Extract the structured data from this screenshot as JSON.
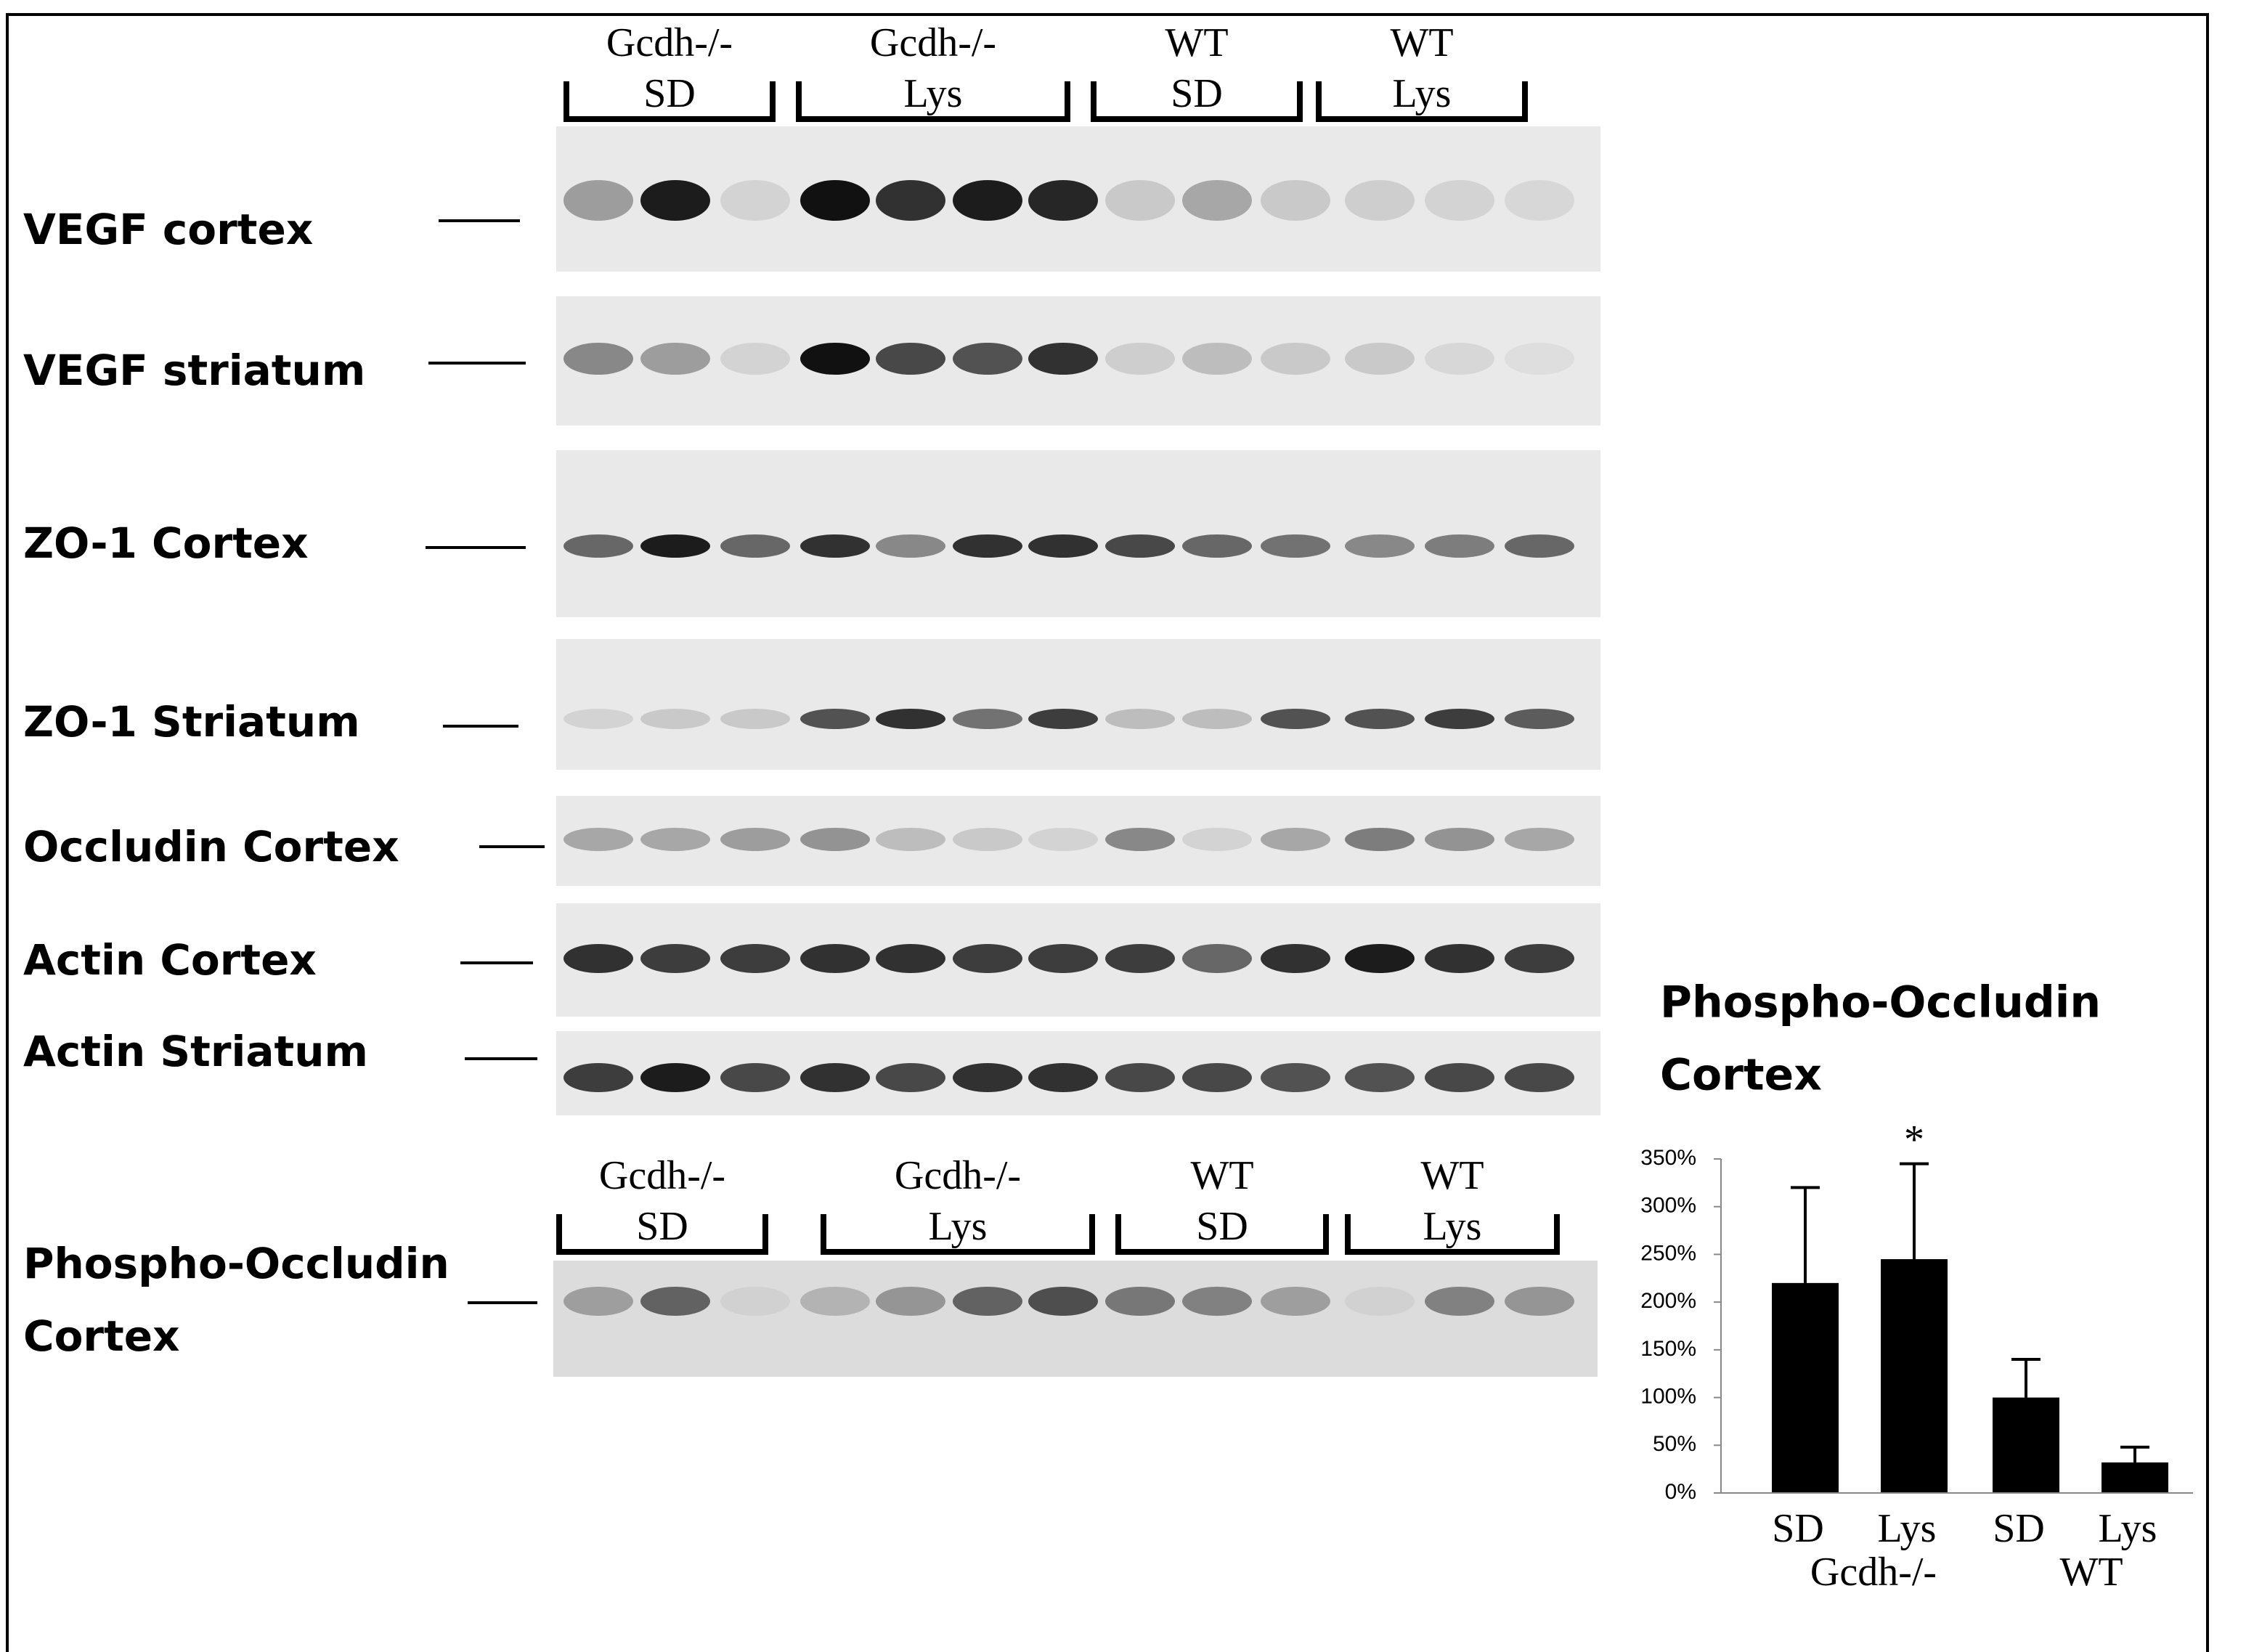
{
  "blots": {
    "top_groups": [
      [
        "Gcdh-/-",
        "SD"
      ],
      [
        "Gcdh-/-",
        "Lys"
      ],
      [
        "WT",
        "SD"
      ],
      [
        "WT",
        "Lys"
      ]
    ],
    "rows": [
      "VEGF cortex",
      "VEGF striatum",
      "ZO-1 Cortex",
      "ZO-1 Striatum",
      "Occludin Cortex",
      "Actin Cortex",
      "Actin Striatum"
    ],
    "bottom_groups": [
      [
        "Gcdh-/-",
        "SD"
      ],
      [
        "Gcdh-/-",
        "Lys"
      ],
      [
        "WT",
        "SD"
      ],
      [
        "WT",
        "Lys"
      ]
    ],
    "bottom_row": [
      "Phospho-Occludin",
      "Cortex"
    ]
  },
  "chart_data": {
    "type": "bar",
    "title": [
      "Phospho-Occludin",
      "Cortex"
    ],
    "categories": [
      "SD",
      "Lys",
      "SD",
      "Lys"
    ],
    "groups": [
      "Gcdh-/-",
      "WT"
    ],
    "values": [
      220,
      245,
      100,
      32
    ],
    "errors": [
      100,
      100,
      40,
      16
    ],
    "significance": "*",
    "color": "#000000",
    "ylim": [
      0,
      350
    ],
    "yticks": [
      {
        "value": 0,
        "label": "0%"
      },
      {
        "value": 50,
        "label": "50%"
      },
      {
        "value": 100,
        "label": "100%"
      },
      {
        "value": 150,
        "label": "150%"
      },
      {
        "value": 200,
        "label": "200%"
      },
      {
        "value": 250,
        "label": "250%"
      },
      {
        "value": 300,
        "label": "300%"
      },
      {
        "value": 350,
        "label": "350%"
      }
    ]
  }
}
